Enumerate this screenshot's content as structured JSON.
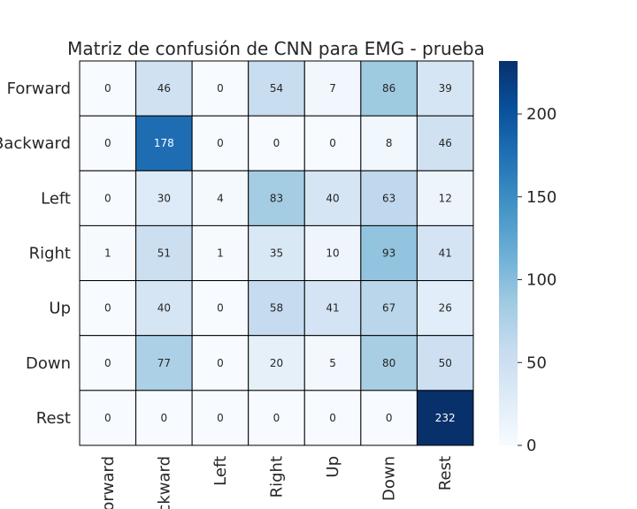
{
  "chart_data": {
    "type": "heatmap",
    "title": "Matriz de confusión de CNN para EMG - prueba",
    "xlabel": "",
    "ylabel": "",
    "row_labels": [
      "Forward",
      "Backward",
      "Left",
      "Right",
      "Up",
      "Down",
      "Rest"
    ],
    "col_labels": [
      "Forward",
      "Backward",
      "Left",
      "Right",
      "Up",
      "Down",
      "Rest"
    ],
    "values": [
      [
        0,
        46,
        0,
        54,
        7,
        86,
        39
      ],
      [
        0,
        178,
        0,
        0,
        0,
        8,
        46
      ],
      [
        0,
        30,
        4,
        83,
        40,
        63,
        12
      ],
      [
        1,
        51,
        1,
        35,
        10,
        93,
        41
      ],
      [
        0,
        40,
        0,
        58,
        41,
        67,
        26
      ],
      [
        0,
        77,
        0,
        20,
        5,
        80,
        50
      ],
      [
        0,
        0,
        0,
        0,
        0,
        0,
        232
      ]
    ],
    "colorbar": {
      "min": 0,
      "max": 232,
      "ticks": [
        0,
        50,
        100,
        150,
        200
      ],
      "colormap": "Blues"
    },
    "cell_border_color": "#000000",
    "low_color": "#f7fbff",
    "high_color": "#08306b",
    "grid": false
  }
}
